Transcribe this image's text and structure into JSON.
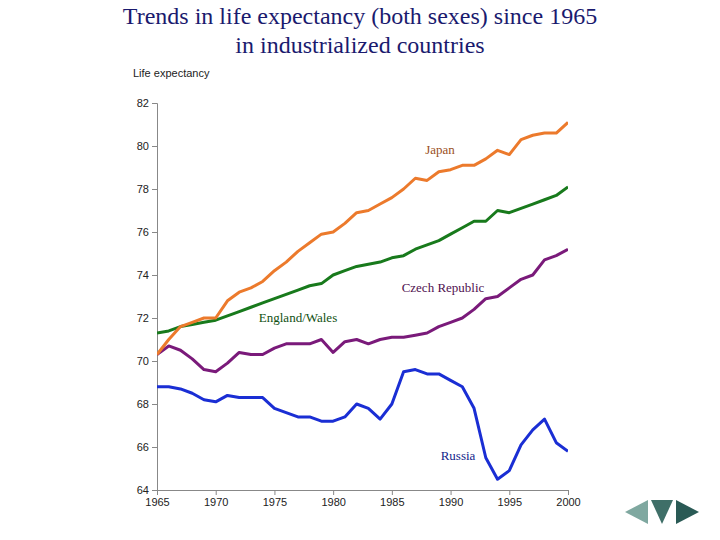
{
  "chart_data": {
    "type": "line",
    "title": [
      "Trends in life expectancy (both sexes) since 1965",
      "in industrialized countries"
    ],
    "y_label": "Life expectancy",
    "x": [
      1965,
      1966,
      1967,
      1968,
      1969,
      1970,
      1971,
      1972,
      1973,
      1974,
      1975,
      1976,
      1977,
      1978,
      1979,
      1980,
      1981,
      1982,
      1983,
      1984,
      1985,
      1986,
      1987,
      1988,
      1989,
      1990,
      1991,
      1992,
      1993,
      1994,
      1995,
      1996,
      1997,
      1998,
      1999,
      2000
    ],
    "xlim": [
      1965,
      2000
    ],
    "xticks": [
      1965,
      1970,
      1975,
      1980,
      1985,
      1990,
      1995,
      2000
    ],
    "ylim": [
      64,
      82
    ],
    "yticks": [
      64,
      66,
      68,
      70,
      72,
      74,
      76,
      78,
      80,
      82
    ],
    "grid": false,
    "series": [
      {
        "name": "Japan",
        "color": "#ec7a2c",
        "values": [
          70.3,
          71.0,
          71.6,
          71.8,
          72.0,
          72.0,
          72.8,
          73.2,
          73.4,
          73.7,
          74.2,
          74.6,
          75.1,
          75.5,
          75.9,
          76.0,
          76.4,
          76.9,
          77.0,
          77.3,
          77.6,
          78.0,
          78.5,
          78.4,
          78.8,
          78.9,
          79.1,
          79.1,
          79.4,
          79.8,
          79.6,
          80.3,
          80.5,
          80.6,
          80.6,
          81.1
        ]
      },
      {
        "name": "Czech Republic",
        "color": "#7a1a7a",
        "values": [
          70.3,
          70.7,
          70.5,
          70.1,
          69.6,
          69.5,
          69.9,
          70.4,
          70.3,
          70.3,
          70.6,
          70.8,
          70.8,
          70.8,
          71.0,
          70.4,
          70.9,
          71.0,
          70.8,
          71.0,
          71.1,
          71.1,
          71.2,
          71.3,
          71.6,
          71.8,
          72.0,
          72.4,
          72.9,
          73.0,
          73.4,
          73.8,
          74.0,
          74.7,
          74.9,
          75.2
        ]
      },
      {
        "name": "England/Wales",
        "color": "#187a1c",
        "values": [
          71.3,
          71.4,
          71.6,
          71.7,
          71.8,
          71.9,
          72.1,
          72.3,
          72.5,
          72.7,
          72.9,
          73.1,
          73.3,
          73.5,
          73.6,
          74.0,
          74.2,
          74.4,
          74.5,
          74.6,
          74.8,
          74.9,
          75.2,
          75.4,
          75.6,
          75.9,
          76.2,
          76.5,
          76.5,
          77.0,
          76.9,
          77.1,
          77.3,
          77.5,
          77.7,
          78.1
        ]
      },
      {
        "name": "Russia",
        "color": "#1a2ed4",
        "values": [
          68.8,
          68.8,
          68.7,
          68.5,
          68.2,
          68.1,
          68.4,
          68.3,
          68.3,
          68.3,
          67.8,
          67.6,
          67.4,
          67.4,
          67.2,
          67.2,
          67.4,
          68.0,
          67.8,
          67.3,
          68.0,
          69.5,
          69.6,
          69.4,
          69.4,
          69.1,
          68.8,
          67.8,
          65.5,
          64.5,
          64.9,
          66.1,
          66.8,
          67.3,
          66.2,
          65.8
        ]
      }
    ]
  }
}
